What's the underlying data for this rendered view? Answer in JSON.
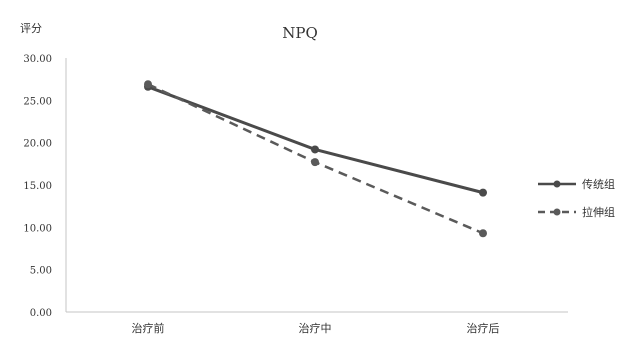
{
  "chart_data": {
    "type": "line",
    "title": "NPQ",
    "ylabel": "评分",
    "xlabel": "",
    "categories": [
      "治疗前",
      "治疗中",
      "治疗后"
    ],
    "ylim": [
      0,
      30
    ],
    "yticks": [
      "0.00",
      "5.00",
      "10.00",
      "15.00",
      "20.00",
      "25.00",
      "30.00"
    ],
    "legend_position": "right",
    "series": [
      {
        "name": "传统组",
        "values": [
          26.6,
          19.2,
          14.1
        ],
        "color": "#4a4a4a",
        "style": "solid"
      },
      {
        "name": "拉伸组",
        "values": [
          26.9,
          17.7,
          9.3
        ],
        "color": "#5a5a5a",
        "style": "dashed"
      }
    ]
  }
}
